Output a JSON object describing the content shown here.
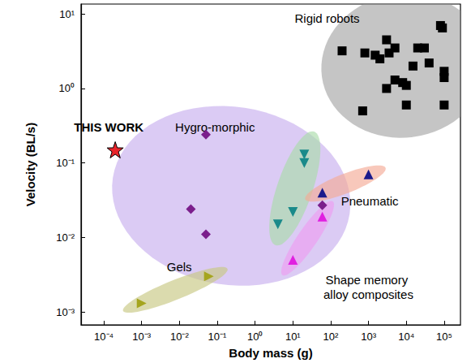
{
  "chart_data": {
    "type": "scatter",
    "x_label": "Body mass (g)",
    "y_label": "Velocity (BL/s)",
    "log": true,
    "grid": false,
    "xlim": [
      2.5e-05,
      270000
    ],
    "ylim": [
      0.00067,
      13.6
    ],
    "xticks": [
      {
        "value": 0.0001,
        "label": "10⁻⁴"
      },
      {
        "value": 0.001,
        "label": "10⁻³"
      },
      {
        "value": 0.01,
        "label": "10⁻²"
      },
      {
        "value": 0.1,
        "label": "10⁻¹"
      },
      {
        "value": 1,
        "label": "10⁰"
      },
      {
        "value": 10,
        "label": "10¹"
      },
      {
        "value": 100,
        "label": "10²"
      },
      {
        "value": 1000,
        "label": "10³"
      },
      {
        "value": 10000,
        "label": "10⁴"
      },
      {
        "value": 100000,
        "label": "10⁵"
      }
    ],
    "yticks": [
      {
        "value": 0.001,
        "label": "10⁻³"
      },
      {
        "value": 0.01,
        "label": "10⁻²"
      },
      {
        "value": 0.1,
        "label": "10⁻¹"
      },
      {
        "value": 1,
        "label": "10⁰"
      },
      {
        "value": 10,
        "label": "10¹"
      }
    ],
    "series": [
      {
        "name": "THIS WORK",
        "color": "#e8242a",
        "marker": "star",
        "values": [
          [
            0.0002,
            0.15
          ]
        ]
      },
      {
        "name": "Rigid robots",
        "color": "#000000",
        "marker": "square",
        "values": [
          [
            200,
            3.2
          ],
          [
            700,
            0.5
          ],
          [
            800,
            3.0
          ],
          [
            1500,
            2.8
          ],
          [
            2000,
            2.5
          ],
          [
            3000,
            4.5
          ],
          [
            3000,
            1.0
          ],
          [
            3500,
            3.0
          ],
          [
            5000,
            1.3
          ],
          [
            5000,
            3.5
          ],
          [
            8000,
            1.2
          ],
          [
            10000,
            0.6
          ],
          [
            10000,
            1.1
          ],
          [
            15000,
            2.0
          ],
          [
            20000,
            3.5
          ],
          [
            30000,
            3.5
          ],
          [
            40000,
            2.2
          ],
          [
            80000,
            7.0
          ],
          [
            90000,
            6.5
          ],
          [
            100000,
            1.7
          ],
          [
            100000,
            1.4
          ],
          [
            100000,
            0.6
          ]
        ]
      },
      {
        "name": "Hygro-morphic",
        "color": "#7b1e8c",
        "marker": "diamond",
        "values": [
          [
            0.05,
            0.24
          ],
          [
            0.02,
            0.024
          ],
          [
            0.05,
            0.011
          ],
          [
            60,
            0.027
          ]
        ]
      },
      {
        "color": "#1a8a8a",
        "marker": "triangle-down",
        "values": [
          [
            4,
            0.015
          ],
          [
            10,
            0.022
          ],
          [
            20,
            0.13
          ],
          [
            20,
            0.1
          ]
        ]
      },
      {
        "name": "Pneumatic",
        "color": "#1a1a8c",
        "marker": "triangle-up",
        "values": [
          [
            60,
            0.04
          ],
          [
            1000,
            0.07
          ]
        ]
      },
      {
        "name": "Shape memory alloy composites",
        "color": "#e020e0",
        "marker": "triangle-up",
        "values": [
          [
            10,
            0.005
          ],
          [
            60,
            0.019
          ]
        ]
      },
      {
        "name": "Gels",
        "color": "#a5a51e",
        "marker": "triangle-right",
        "values": [
          [
            0.001,
            0.0013
          ],
          [
            0.06,
            0.003
          ]
        ]
      }
    ]
  }
}
